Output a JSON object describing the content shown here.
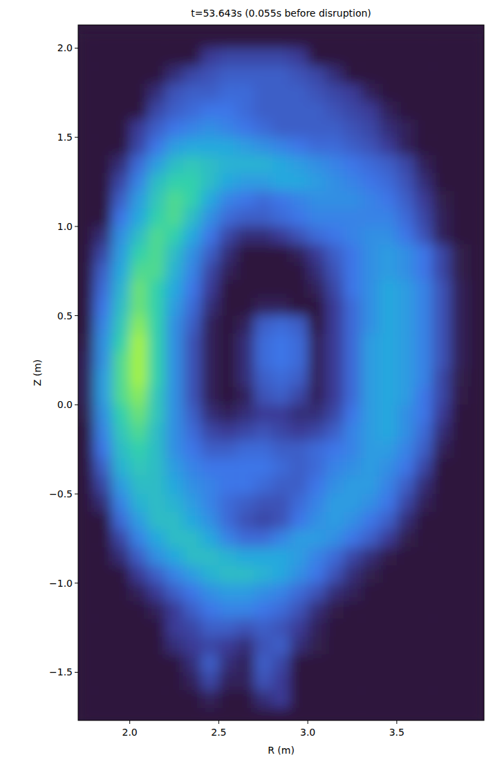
{
  "chart_data": {
    "type": "heatmap",
    "title": "t=53.643s (0.055s before disruption)",
    "x_label": "R (m)",
    "y_label": "Z (m)",
    "xlim": [
      1.71,
      3.99
    ],
    "ylim": [
      -1.77,
      2.13
    ],
    "xticks": [
      {
        "value": 2,
        "label": "2.0"
      },
      {
        "value": 2.5,
        "label": "2.5"
      },
      {
        "value": 3,
        "label": "3.0"
      },
      {
        "value": 3.5,
        "label": "3.5"
      }
    ],
    "yticks": [
      {
        "value": -1.5,
        "label": "−1.5"
      },
      {
        "value": -1,
        "label": "−1.0"
      },
      {
        "value": -0.5,
        "label": "−0.5"
      },
      {
        "value": 0,
        "label": "0.0"
      },
      {
        "value": 0.5,
        "label": "0.5"
      },
      {
        "value": 1,
        "label": "1.0"
      },
      {
        "value": 1.5,
        "label": "1.5"
      },
      {
        "value": 2,
        "label": "2.0"
      }
    ],
    "x": [
      1.75,
      1.85,
      1.95,
      2.05,
      2.15,
      2.25,
      2.35,
      2.45,
      2.55,
      2.65,
      2.75,
      2.85,
      2.95,
      3.05,
      3.15,
      3.25,
      3.35,
      3.45,
      3.55,
      3.65,
      3.75,
      3.85,
      3.95
    ],
    "y": [
      2.05,
      1.95,
      1.85,
      1.75,
      1.65,
      1.55,
      1.45,
      1.35,
      1.25,
      1.15,
      1.05,
      0.95,
      0.85,
      0.75,
      0.65,
      0.55,
      0.45,
      0.35,
      0.25,
      0.15,
      0.05,
      -0.05,
      -0.15,
      -0.25,
      -0.35,
      -0.45,
      -0.55,
      -0.65,
      -0.75,
      -0.85,
      -0.95,
      -1.05,
      -1.15,
      -1.25,
      -1.35,
      -1.45,
      -1.55,
      -1.65,
      -1.75
    ],
    "cells": [
      [
        0,
        0,
        0,
        0,
        0,
        0,
        0,
        0,
        0,
        0,
        0,
        0,
        0,
        0,
        0,
        0,
        0,
        0,
        0,
        0,
        0,
        0,
        0
      ],
      [
        0,
        0,
        0,
        0,
        0,
        0,
        0,
        0.15,
        0.2,
        0.2,
        0.2,
        0.2,
        0.15,
        0,
        0,
        0,
        0,
        0,
        0,
        0,
        0,
        0,
        0
      ],
      [
        0,
        0,
        0,
        0,
        0,
        0.1,
        0.2,
        0.25,
        0.3,
        0.3,
        0.3,
        0.3,
        0.25,
        0.2,
        0.1,
        0,
        0,
        0,
        0,
        0,
        0,
        0,
        0
      ],
      [
        0,
        0,
        0,
        0,
        0.1,
        0.25,
        0.3,
        0.3,
        0.35,
        0.35,
        0.3,
        0.3,
        0.3,
        0.25,
        0.2,
        0.15,
        0.05,
        0,
        0,
        0,
        0,
        0,
        0
      ],
      [
        0,
        0,
        0,
        0,
        0.2,
        0.3,
        0.35,
        0.4,
        0.4,
        0.35,
        0.3,
        0.3,
        0.3,
        0.3,
        0.25,
        0.2,
        0.15,
        0.05,
        0,
        0,
        0,
        0,
        0
      ],
      [
        0,
        0,
        0,
        0.15,
        0.3,
        0.4,
        0.45,
        0.5,
        0.45,
        0.4,
        0.35,
        0.3,
        0.3,
        0.3,
        0.3,
        0.25,
        0.2,
        0.1,
        0.05,
        0,
        0,
        0,
        0
      ],
      [
        0,
        0,
        0,
        0.2,
        0.4,
        0.55,
        0.6,
        0.6,
        0.6,
        0.55,
        0.5,
        0.45,
        0.4,
        0.35,
        0.35,
        0.3,
        0.25,
        0.15,
        0.05,
        0,
        0,
        0,
        0
      ],
      [
        0,
        0,
        0.1,
        0.35,
        0.55,
        0.7,
        0.75,
        0.7,
        0.65,
        0.65,
        0.65,
        0.6,
        0.55,
        0.5,
        0.45,
        0.4,
        0.35,
        0.3,
        0.2,
        0.05,
        0,
        0,
        0
      ],
      [
        0,
        0,
        0.2,
        0.45,
        0.7,
        0.8,
        0.8,
        0.7,
        0.6,
        0.55,
        0.55,
        0.6,
        0.6,
        0.55,
        0.5,
        0.45,
        0.4,
        0.35,
        0.25,
        0.1,
        0,
        0,
        0
      ],
      [
        0,
        0,
        0.3,
        0.55,
        0.75,
        0.85,
        0.8,
        0.6,
        0.45,
        0.4,
        0.35,
        0.4,
        0.45,
        0.5,
        0.5,
        0.5,
        0.45,
        0.4,
        0.3,
        0.15,
        0.03,
        0,
        0
      ],
      [
        0,
        0,
        0.4,
        0.6,
        0.8,
        0.85,
        0.7,
        0.5,
        0.35,
        0.3,
        0.3,
        0.35,
        0.4,
        0.45,
        0.45,
        0.45,
        0.45,
        0.45,
        0.35,
        0.2,
        0.05,
        0,
        0
      ],
      [
        0,
        0.1,
        0.5,
        0.7,
        0.85,
        0.8,
        0.6,
        0.4,
        0.2,
        0.1,
        0.1,
        0.15,
        0.25,
        0.35,
        0.4,
        0.45,
        0.5,
        0.5,
        0.4,
        0.25,
        0.05,
        0,
        0
      ],
      [
        0,
        0.2,
        0.55,
        0.8,
        0.85,
        0.7,
        0.5,
        0.3,
        0.1,
        0,
        0,
        0,
        0.05,
        0.15,
        0.3,
        0.4,
        0.5,
        0.55,
        0.5,
        0.4,
        0.2,
        0.03,
        0
      ],
      [
        0,
        0.3,
        0.6,
        0.85,
        0.85,
        0.65,
        0.45,
        0.2,
        0.05,
        0,
        0,
        0,
        0,
        0.1,
        0.25,
        0.4,
        0.5,
        0.55,
        0.5,
        0.4,
        0.2,
        0.03,
        0
      ],
      [
        0,
        0.35,
        0.65,
        0.9,
        0.8,
        0.6,
        0.4,
        0.15,
        0,
        0,
        0,
        0,
        0,
        0.05,
        0.2,
        0.4,
        0.5,
        0.6,
        0.55,
        0.45,
        0.25,
        0.05,
        0
      ],
      [
        0,
        0.4,
        0.7,
        0.9,
        0.8,
        0.55,
        0.35,
        0.1,
        0,
        0,
        0.05,
        0.05,
        0,
        0,
        0.15,
        0.35,
        0.5,
        0.6,
        0.55,
        0.45,
        0.25,
        0.05,
        0
      ],
      [
        0,
        0.45,
        0.75,
        0.95,
        0.8,
        0.5,
        0.3,
        0.05,
        0,
        0.05,
        0.3,
        0.35,
        0.3,
        0,
        0.15,
        0.35,
        0.5,
        0.6,
        0.55,
        0.45,
        0.25,
        0.05,
        0
      ],
      [
        0.02,
        0.5,
        0.8,
        1.0,
        0.8,
        0.5,
        0.25,
        0.05,
        0,
        0.1,
        0.35,
        0.4,
        0.35,
        0.05,
        0.15,
        0.35,
        0.55,
        0.6,
        0.55,
        0.45,
        0.25,
        0.05,
        0
      ],
      [
        0.05,
        0.5,
        0.85,
        1.0,
        0.8,
        0.5,
        0.25,
        0.05,
        0,
        0.1,
        0.35,
        0.4,
        0.35,
        0.05,
        0.15,
        0.35,
        0.55,
        0.6,
        0.55,
        0.45,
        0.25,
        0.05,
        0
      ],
      [
        0.05,
        0.55,
        0.85,
        1.0,
        0.8,
        0.5,
        0.25,
        0.05,
        0,
        0.1,
        0.3,
        0.35,
        0.3,
        0.05,
        0.15,
        0.35,
        0.55,
        0.6,
        0.55,
        0.45,
        0.2,
        0.03,
        0
      ],
      [
        0.05,
        0.55,
        0.85,
        0.95,
        0.75,
        0.5,
        0.25,
        0.05,
        0,
        0.05,
        0.25,
        0.3,
        0.2,
        0.05,
        0.15,
        0.35,
        0.55,
        0.6,
        0.55,
        0.4,
        0.2,
        0.02,
        0
      ],
      [
        0.03,
        0.5,
        0.8,
        0.9,
        0.75,
        0.5,
        0.3,
        0.1,
        0.05,
        0.1,
        0.15,
        0.15,
        0.1,
        0.1,
        0.2,
        0.4,
        0.55,
        0.6,
        0.5,
        0.4,
        0.15,
        0,
        0
      ],
      [
        0,
        0.45,
        0.75,
        0.85,
        0.7,
        0.5,
        0.35,
        0.2,
        0.15,
        0.2,
        0.25,
        0.2,
        0.15,
        0.2,
        0.3,
        0.45,
        0.55,
        0.6,
        0.5,
        0.35,
        0.1,
        0,
        0
      ],
      [
        0,
        0.4,
        0.7,
        0.8,
        0.7,
        0.5,
        0.4,
        0.3,
        0.3,
        0.35,
        0.35,
        0.3,
        0.3,
        0.35,
        0.4,
        0.45,
        0.55,
        0.55,
        0.45,
        0.3,
        0.05,
        0,
        0
      ],
      [
        0,
        0.3,
        0.65,
        0.75,
        0.7,
        0.55,
        0.45,
        0.4,
        0.4,
        0.4,
        0.4,
        0.35,
        0.3,
        0.35,
        0.45,
        0.5,
        0.55,
        0.5,
        0.4,
        0.2,
        0,
        0,
        0
      ],
      [
        0,
        0.2,
        0.55,
        0.7,
        0.7,
        0.6,
        0.5,
        0.45,
        0.4,
        0.4,
        0.35,
        0.3,
        0.3,
        0.4,
        0.5,
        0.55,
        0.55,
        0.45,
        0.3,
        0.1,
        0,
        0,
        0
      ],
      [
        0,
        0.1,
        0.45,
        0.65,
        0.7,
        0.65,
        0.55,
        0.45,
        0.35,
        0.3,
        0.25,
        0.25,
        0.35,
        0.45,
        0.55,
        0.55,
        0.5,
        0.4,
        0.2,
        0.05,
        0,
        0,
        0
      ],
      [
        0,
        0,
        0.35,
        0.55,
        0.7,
        0.7,
        0.6,
        0.5,
        0.35,
        0.25,
        0.2,
        0.25,
        0.4,
        0.5,
        0.55,
        0.5,
        0.4,
        0.3,
        0.1,
        0,
        0,
        0,
        0
      ],
      [
        0,
        0,
        0.2,
        0.45,
        0.6,
        0.7,
        0.7,
        0.6,
        0.45,
        0.35,
        0.35,
        0.45,
        0.55,
        0.55,
        0.5,
        0.4,
        0.3,
        0.15,
        0.03,
        0,
        0,
        0,
        0
      ],
      [
        0,
        0,
        0.1,
        0.3,
        0.5,
        0.6,
        0.7,
        0.7,
        0.65,
        0.6,
        0.6,
        0.6,
        0.55,
        0.45,
        0.35,
        0.2,
        0.1,
        0.02,
        0,
        0,
        0,
        0,
        0
      ],
      [
        0,
        0,
        0,
        0.15,
        0.3,
        0.45,
        0.55,
        0.65,
        0.7,
        0.7,
        0.65,
        0.6,
        0.5,
        0.4,
        0.25,
        0.1,
        0.03,
        0,
        0,
        0,
        0,
        0,
        0
      ],
      [
        0,
        0,
        0,
        0.05,
        0.15,
        0.3,
        0.4,
        0.5,
        0.55,
        0.55,
        0.5,
        0.45,
        0.35,
        0.25,
        0.1,
        0.05,
        0,
        0,
        0,
        0,
        0,
        0,
        0
      ],
      [
        0,
        0,
        0,
        0,
        0.05,
        0.15,
        0.3,
        0.4,
        0.45,
        0.45,
        0.4,
        0.35,
        0.25,
        0.1,
        0.02,
        0,
        0,
        0,
        0,
        0,
        0,
        0,
        0
      ],
      [
        0,
        0,
        0,
        0,
        0,
        0.15,
        0.2,
        0.3,
        0.3,
        0.25,
        0.3,
        0.25,
        0.15,
        0.05,
        0,
        0,
        0,
        0,
        0,
        0,
        0,
        0,
        0
      ],
      [
        0,
        0,
        0,
        0,
        0,
        0.1,
        0.15,
        0.2,
        0.15,
        0.1,
        0.25,
        0.3,
        0.1,
        0.03,
        0,
        0,
        0,
        0,
        0,
        0,
        0,
        0,
        0
      ],
      [
        0,
        0,
        0,
        0,
        0,
        0,
        0.1,
        0.3,
        0.1,
        0.05,
        0.3,
        0.2,
        0,
        0,
        0,
        0,
        0,
        0,
        0,
        0,
        0,
        0,
        0
      ],
      [
        0,
        0,
        0,
        0,
        0,
        0,
        0.05,
        0.2,
        0.05,
        0.05,
        0.25,
        0.15,
        0,
        0,
        0,
        0,
        0,
        0,
        0,
        0,
        0,
        0,
        0
      ],
      [
        0,
        0,
        0,
        0,
        0,
        0,
        0,
        0.05,
        0,
        0,
        0.1,
        0.15,
        0,
        0,
        0,
        0,
        0,
        0,
        0,
        0,
        0,
        0,
        0
      ],
      [
        0,
        0,
        0,
        0,
        0,
        0,
        0,
        0,
        0,
        0,
        0,
        0,
        0,
        0,
        0,
        0,
        0,
        0,
        0,
        0,
        0,
        0,
        0
      ]
    ]
  }
}
